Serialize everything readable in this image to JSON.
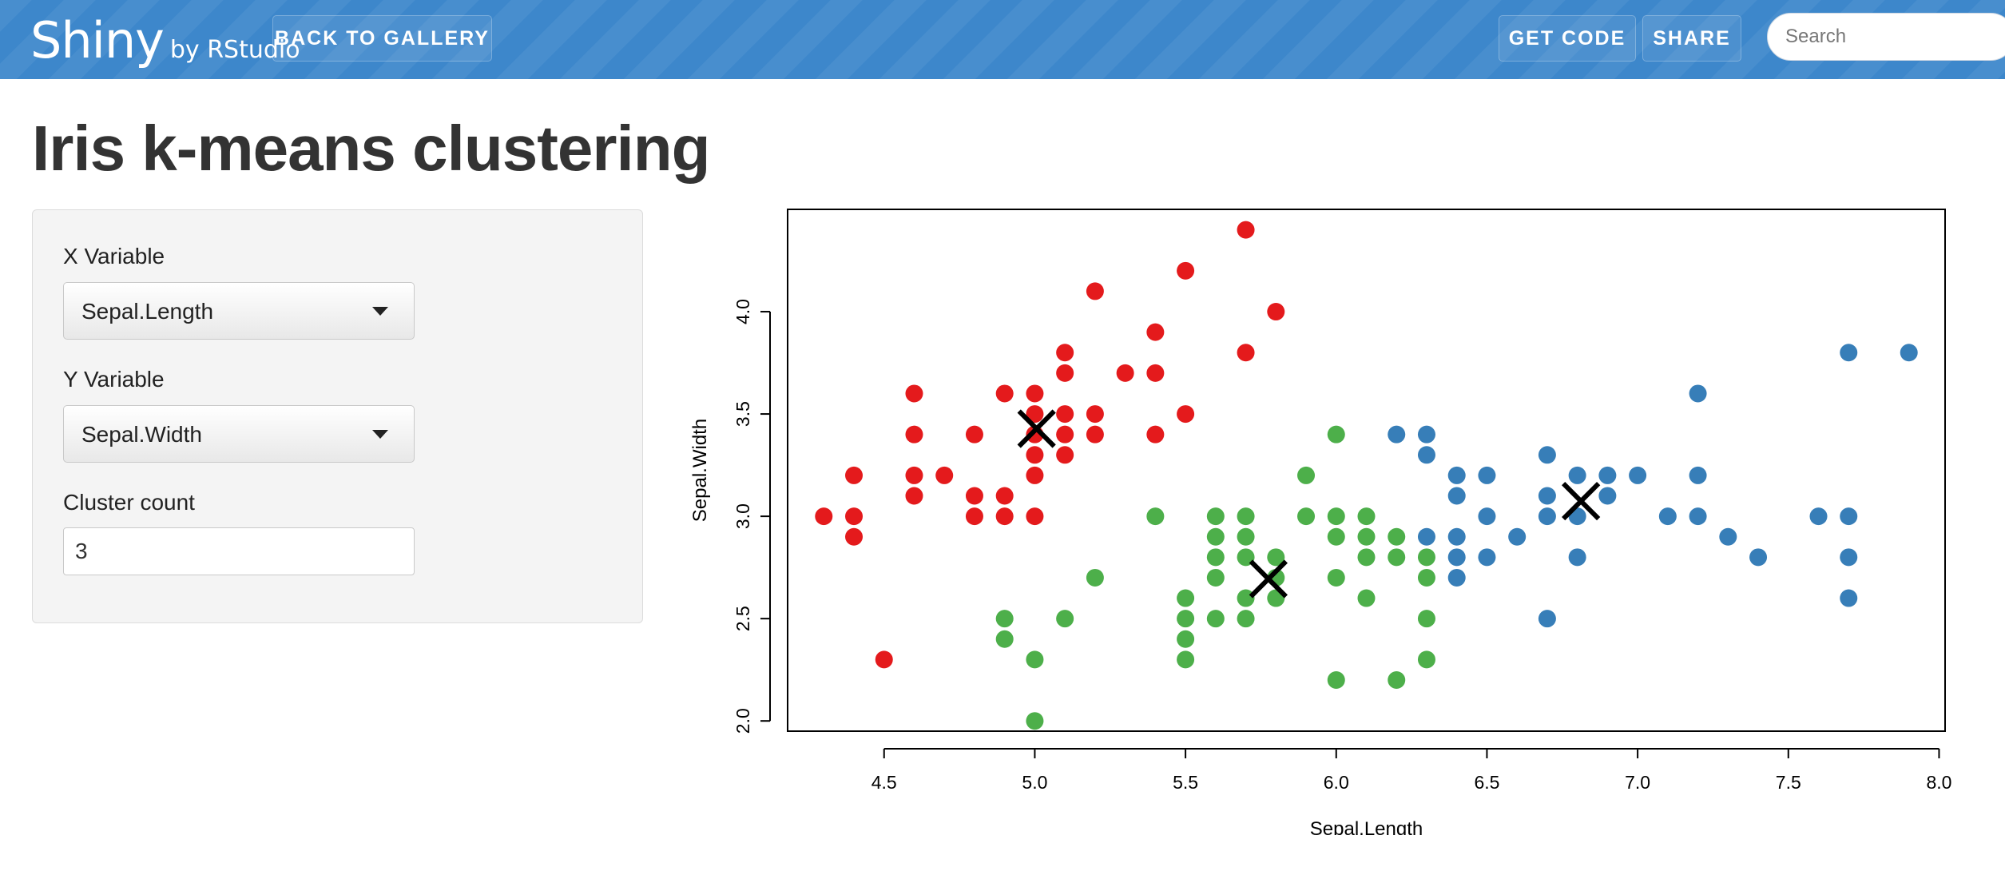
{
  "header": {
    "brand": "Shiny",
    "brand_sub": "by RStudio",
    "back_to_gallery": "BACK TO GALLERY",
    "get_code": "GET CODE",
    "share": "SHARE",
    "search_placeholder": "Search"
  },
  "page": {
    "title": "Iris k-means clustering"
  },
  "controls": {
    "x_label": "X Variable",
    "x_value": "Sepal.Length",
    "y_label": "Y Variable",
    "y_value": "Sepal.Width",
    "cluster_label": "Cluster count",
    "cluster_value": "3"
  },
  "colors": {
    "cluster1": "#e41a1c",
    "cluster2": "#4daf4a",
    "cluster3": "#377eb8",
    "header": "#3d87cb"
  },
  "chart_data": {
    "type": "scatter",
    "xlabel": "Sepal.Length",
    "ylabel": "Sepal.Width",
    "xticks": [
      "4.5",
      "5.0",
      "5.5",
      "6.0",
      "6.5",
      "7.0",
      "7.5",
      "8.0"
    ],
    "yticks": [
      "2.0",
      "2.5",
      "3.0",
      "3.5",
      "4.0"
    ],
    "xlim": [
      4.18,
      8.02
    ],
    "ylim": [
      1.95,
      4.5
    ],
    "series": [
      {
        "color": "#e41a1c",
        "points": [
          [
            4.3,
            3.0
          ],
          [
            4.4,
            3.2
          ],
          [
            4.4,
            3.0
          ],
          [
            4.4,
            2.9
          ],
          [
            4.5,
            2.3
          ],
          [
            4.6,
            3.6
          ],
          [
            4.6,
            3.4
          ],
          [
            4.6,
            3.2
          ],
          [
            4.6,
            3.1
          ],
          [
            4.7,
            3.2
          ],
          [
            4.8,
            3.4
          ],
          [
            4.8,
            3.1
          ],
          [
            4.8,
            3.0
          ],
          [
            4.9,
            3.6
          ],
          [
            4.9,
            3.1
          ],
          [
            4.9,
            3.0
          ],
          [
            5.0,
            3.6
          ],
          [
            5.0,
            3.5
          ],
          [
            5.0,
            3.4
          ],
          [
            5.0,
            3.3
          ],
          [
            5.0,
            3.2
          ],
          [
            5.0,
            3.0
          ],
          [
            5.1,
            3.8
          ],
          [
            5.1,
            3.7
          ],
          [
            5.1,
            3.5
          ],
          [
            5.1,
            3.4
          ],
          [
            5.1,
            3.3
          ],
          [
            5.2,
            4.1
          ],
          [
            5.2,
            3.5
          ],
          [
            5.2,
            3.4
          ],
          [
            5.3,
            3.7
          ],
          [
            5.4,
            3.9
          ],
          [
            5.4,
            3.7
          ],
          [
            5.4,
            3.4
          ],
          [
            5.5,
            4.2
          ],
          [
            5.5,
            3.5
          ],
          [
            5.7,
            4.4
          ],
          [
            5.7,
            3.8
          ],
          [
            5.8,
            4.0
          ]
        ]
      },
      {
        "color": "#4daf4a",
        "points": [
          [
            4.9,
            2.5
          ],
          [
            4.9,
            2.4
          ],
          [
            5.0,
            2.3
          ],
          [
            5.0,
            2.0
          ],
          [
            5.1,
            2.5
          ],
          [
            5.2,
            2.7
          ],
          [
            5.4,
            3.0
          ],
          [
            5.5,
            2.6
          ],
          [
            5.5,
            2.5
          ],
          [
            5.5,
            2.4
          ],
          [
            5.5,
            2.3
          ],
          [
            5.6,
            3.0
          ],
          [
            5.6,
            2.9
          ],
          [
            5.6,
            2.8
          ],
          [
            5.6,
            2.7
          ],
          [
            5.6,
            2.5
          ],
          [
            5.7,
            3.0
          ],
          [
            5.7,
            2.9
          ],
          [
            5.7,
            2.8
          ],
          [
            5.7,
            2.6
          ],
          [
            5.7,
            2.5
          ],
          [
            5.8,
            2.8
          ],
          [
            5.8,
            2.7
          ],
          [
            5.8,
            2.6
          ],
          [
            5.9,
            3.2
          ],
          [
            5.9,
            3.0
          ],
          [
            6.0,
            3.4
          ],
          [
            6.0,
            3.0
          ],
          [
            6.0,
            2.9
          ],
          [
            6.0,
            2.7
          ],
          [
            6.0,
            2.2
          ],
          [
            6.1,
            3.0
          ],
          [
            6.1,
            2.9
          ],
          [
            6.1,
            2.8
          ],
          [
            6.1,
            2.6
          ],
          [
            6.2,
            2.9
          ],
          [
            6.2,
            2.8
          ],
          [
            6.2,
            2.2
          ],
          [
            6.3,
            2.8
          ],
          [
            6.3,
            2.7
          ],
          [
            6.3,
            2.5
          ],
          [
            6.3,
            2.3
          ]
        ]
      },
      {
        "color": "#377eb8",
        "points": [
          [
            6.2,
            3.4
          ],
          [
            6.3,
            3.4
          ],
          [
            6.3,
            3.3
          ],
          [
            6.3,
            2.9
          ],
          [
            6.4,
            3.2
          ],
          [
            6.4,
            3.1
          ],
          [
            6.4,
            2.9
          ],
          [
            6.4,
            2.8
          ],
          [
            6.4,
            2.7
          ],
          [
            6.5,
            3.2
          ],
          [
            6.5,
            3.0
          ],
          [
            6.5,
            2.8
          ],
          [
            6.6,
            2.9
          ],
          [
            6.7,
            3.3
          ],
          [
            6.7,
            3.1
          ],
          [
            6.7,
            3.0
          ],
          [
            6.7,
            2.5
          ],
          [
            6.8,
            3.2
          ],
          [
            6.8,
            3.0
          ],
          [
            6.8,
            2.8
          ],
          [
            6.9,
            3.2
          ],
          [
            6.9,
            3.1
          ],
          [
            7.0,
            3.2
          ],
          [
            7.1,
            3.0
          ],
          [
            7.2,
            3.6
          ],
          [
            7.2,
            3.2
          ],
          [
            7.2,
            3.0
          ],
          [
            7.3,
            2.9
          ],
          [
            7.4,
            2.8
          ],
          [
            7.6,
            3.0
          ],
          [
            7.7,
            3.8
          ],
          [
            7.7,
            3.0
          ],
          [
            7.7,
            2.8
          ],
          [
            7.7,
            2.6
          ],
          [
            7.9,
            3.8
          ]
        ]
      }
    ],
    "centers": [
      [
        5.006,
        3.428
      ],
      [
        5.775,
        2.694
      ],
      [
        6.812,
        3.074
      ]
    ]
  }
}
